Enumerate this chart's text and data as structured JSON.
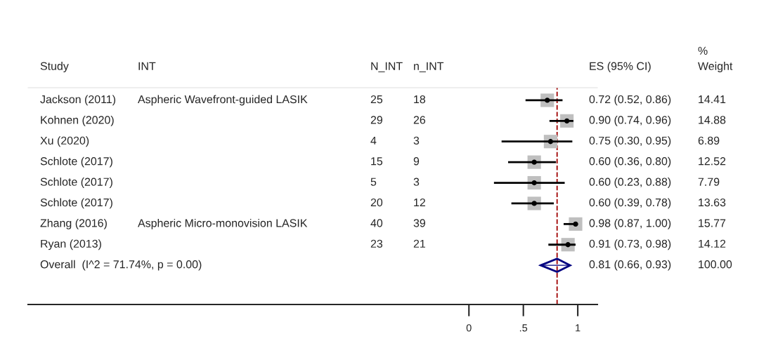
{
  "chart_data": {
    "type": "scatter",
    "orientation": "horizontal",
    "ylabel": "Study",
    "categories": [
      "Jackson (2011)",
      "Kohnen (2020)",
      "Xu (2020)",
      "Schlote (2017)",
      "Schlote (2017)",
      "Schlote (2017)",
      "Zhang (2016)",
      "Ryan (2013)",
      "Overall  (I^2 = 71.74%, p = 0.00)"
    ],
    "series": [
      {
        "marker": "square",
        "color": "#bfbfbf",
        "values": [
          0.72,
          0.9,
          0.75,
          0.6,
          0.6,
          0.6,
          0.98,
          0.91,
          null
        ],
        "errors": [
          [
            0.52,
            0.86
          ],
          [
            0.74,
            0.96
          ],
          [
            0.3,
            0.95
          ],
          [
            0.36,
            0.8
          ],
          [
            0.23,
            0.88
          ],
          [
            0.39,
            0.78
          ],
          [
            0.87,
            1.0
          ],
          [
            0.73,
            0.98
          ],
          null
        ],
        "value_labels": [
          "0.72 (0.52, 0.86)",
          "0.90 (0.74, 0.96)",
          "0.75 (0.30, 0.95)",
          "0.60 (0.36, 0.80)",
          "0.60 (0.23, 0.88)",
          "0.60 (0.39, 0.78)",
          "0.98 (0.87, 1.00)",
          "0.91 (0.73, 0.98)",
          null
        ]
      },
      {
        "marker": "diamond",
        "color": "#000080",
        "values": [
          null,
          null,
          null,
          null,
          null,
          null,
          null,
          null,
          0.81
        ],
        "errors": [
          null,
          null,
          null,
          null,
          null,
          null,
          null,
          null,
          [
            0.66,
            0.93
          ]
        ],
        "value_labels": [
          null,
          null,
          null,
          null,
          null,
          null,
          null,
          null,
          "0.81 (0.66, 0.93)"
        ]
      }
    ],
    "xlim": [
      -4.05,
      1.18
    ],
    "xticks": [
      0,
      {
        "value": 0.5,
        "label": ".5"
      },
      1
    ],
    "ref_lines": [
      {
        "axis": "x",
        "value": 0.81,
        "color": "#a00000",
        "line_style": "dashed"
      }
    ],
    "grid": false,
    "legend": false,
    "annotations": [
      "INT",
      "N_INT",
      "n_INT",
      "ES (95% CI)",
      "%\nWeight",
      "Aspheric Wavefront-guided LASIK",
      "25",
      "18",
      "14.41",
      null,
      "29",
      "26",
      "14.88",
      null,
      "4",
      "3",
      "6.89",
      null,
      "15",
      "9",
      "12.52",
      null,
      "5",
      "3",
      "7.79",
      null,
      "20",
      "12",
      "13.63",
      "Aspheric Micro-monovision LASIK",
      "40",
      "39",
      "15.77",
      null,
      "23",
      "21",
      "14.12",
      null,
      null,
      null,
      "100.00"
    ]
  }
}
